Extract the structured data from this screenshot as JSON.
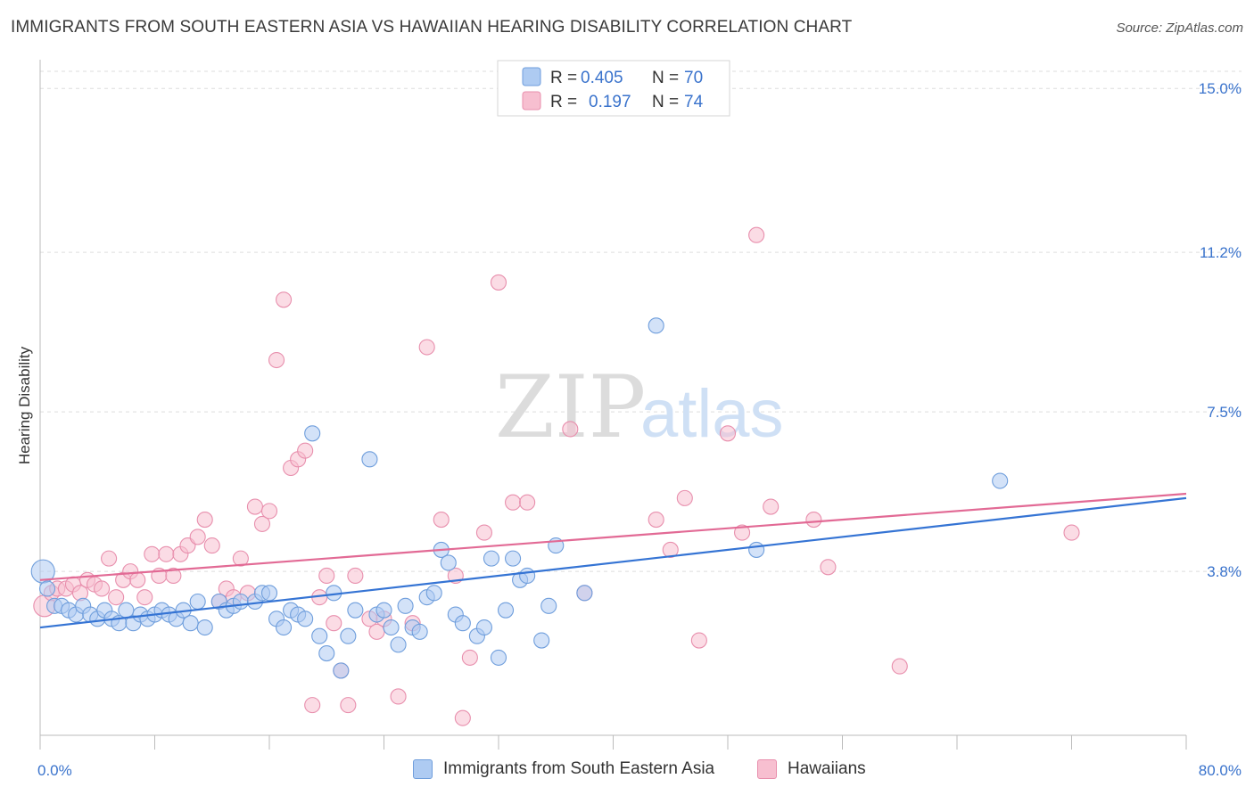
{
  "header": {
    "title": "IMMIGRANTS FROM SOUTH EASTERN ASIA VS HAWAIIAN HEARING DISABILITY CORRELATION CHART",
    "source": "Source: ZipAtlas.com"
  },
  "watermark": {
    "zip": "ZIP",
    "atlas": "atlas"
  },
  "colors": {
    "blue_fill": "#aecbf2",
    "blue_stroke": "#6f9edc",
    "blue_line": "#3574d4",
    "pink_fill": "#f7bfd0",
    "pink_stroke": "#e88fad",
    "pink_line": "#e26a95",
    "tick_label": "#3a73cc",
    "grid": "#dddddd"
  },
  "legend_top": {
    "rows": [
      {
        "r_label": "R =",
        "r_value": "0.405",
        "n_label": "N =",
        "n_value": "70"
      },
      {
        "r_label": "R =",
        "r_value": "0.197",
        "n_label": "N =",
        "n_value": "74"
      }
    ]
  },
  "legend_bottom": {
    "series1": "Immigrants from South Eastern Asia",
    "series2": "Hawaiians"
  },
  "chart_data": {
    "type": "scatter",
    "title": "IMMIGRANTS FROM SOUTH EASTERN ASIA VS HAWAIIAN HEARING DISABILITY CORRELATION CHART",
    "xlabel": "",
    "ylabel": "Hearing Disability",
    "xlim": [
      0,
      80
    ],
    "ylim": [
      0,
      15.5
    ],
    "x_tick_labels": [
      "0.0%",
      "80.0%"
    ],
    "y_ticks": [
      3.8,
      7.5,
      11.2,
      15.0
    ],
    "y_tick_labels": [
      "3.8%",
      "7.5%",
      "11.2%",
      "15.0%"
    ],
    "grid": "horizontal dashed",
    "legend": "top-center",
    "series": [
      {
        "name": "Immigrants from South Eastern Asia",
        "color": "#6f9edc",
        "R": 0.405,
        "N": 70,
        "trend": {
          "x": [
            0,
            80
          ],
          "y": [
            2.5,
            5.5
          ]
        },
        "points": [
          [
            0.2,
            3.8
          ],
          [
            0.5,
            3.4
          ],
          [
            1.0,
            3.0
          ],
          [
            1.5,
            3.0
          ],
          [
            2.0,
            2.9
          ],
          [
            2.5,
            2.8
          ],
          [
            3.0,
            3.0
          ],
          [
            3.5,
            2.8
          ],
          [
            4.0,
            2.7
          ],
          [
            4.5,
            2.9
          ],
          [
            5.0,
            2.7
          ],
          [
            5.5,
            2.6
          ],
          [
            6.0,
            2.9
          ],
          [
            6.5,
            2.6
          ],
          [
            7.0,
            2.8
          ],
          [
            7.5,
            2.7
          ],
          [
            8.0,
            2.8
          ],
          [
            8.5,
            2.9
          ],
          [
            9.0,
            2.8
          ],
          [
            9.5,
            2.7
          ],
          [
            10.0,
            2.9
          ],
          [
            10.5,
            2.6
          ],
          [
            11.0,
            3.1
          ],
          [
            11.5,
            2.5
          ],
          [
            12.5,
            3.1
          ],
          [
            13.0,
            2.9
          ],
          [
            13.5,
            3.0
          ],
          [
            14.0,
            3.1
          ],
          [
            15.0,
            3.1
          ],
          [
            15.5,
            3.3
          ],
          [
            16.0,
            3.3
          ],
          [
            16.5,
            2.7
          ],
          [
            17.0,
            2.5
          ],
          [
            17.5,
            2.9
          ],
          [
            18.0,
            2.8
          ],
          [
            18.5,
            2.7
          ],
          [
            19.0,
            7.0
          ],
          [
            19.5,
            2.3
          ],
          [
            20.0,
            1.9
          ],
          [
            20.5,
            3.3
          ],
          [
            21.0,
            1.5
          ],
          [
            21.5,
            2.3
          ],
          [
            22.0,
            2.9
          ],
          [
            23.0,
            6.4
          ],
          [
            23.5,
            2.8
          ],
          [
            24.0,
            2.9
          ],
          [
            24.5,
            2.5
          ],
          [
            25.0,
            2.1
          ],
          [
            25.5,
            3.0
          ],
          [
            26.0,
            2.5
          ],
          [
            26.5,
            2.4
          ],
          [
            27.0,
            3.2
          ],
          [
            27.5,
            3.3
          ],
          [
            28.0,
            4.3
          ],
          [
            28.5,
            4.0
          ],
          [
            29.0,
            2.8
          ],
          [
            29.5,
            2.6
          ],
          [
            30.5,
            2.3
          ],
          [
            31.0,
            2.5
          ],
          [
            31.5,
            4.1
          ],
          [
            32.0,
            1.8
          ],
          [
            32.5,
            2.9
          ],
          [
            33.0,
            4.1
          ],
          [
            33.5,
            3.6
          ],
          [
            34.0,
            3.7
          ],
          [
            35.0,
            2.2
          ],
          [
            35.5,
            3.0
          ],
          [
            36.0,
            4.4
          ],
          [
            38.0,
            3.3
          ],
          [
            43.0,
            9.5
          ],
          [
            50.0,
            4.3
          ],
          [
            67.0,
            5.9
          ]
        ]
      },
      {
        "name": "Hawaiians",
        "color": "#e88fad",
        "R": 0.197,
        "N": 74,
        "trend": {
          "x": [
            0,
            80
          ],
          "y": [
            3.6,
            5.6
          ]
        },
        "points": [
          [
            0.3,
            3.0
          ],
          [
            0.8,
            3.3
          ],
          [
            1.2,
            3.4
          ],
          [
            1.8,
            3.4
          ],
          [
            2.3,
            3.5
          ],
          [
            2.8,
            3.3
          ],
          [
            3.3,
            3.6
          ],
          [
            3.8,
            3.5
          ],
          [
            4.3,
            3.4
          ],
          [
            4.8,
            4.1
          ],
          [
            5.3,
            3.2
          ],
          [
            5.8,
            3.6
          ],
          [
            6.3,
            3.8
          ],
          [
            6.8,
            3.6
          ],
          [
            7.3,
            3.2
          ],
          [
            7.8,
            4.2
          ],
          [
            8.3,
            3.7
          ],
          [
            8.8,
            4.2
          ],
          [
            9.3,
            3.7
          ],
          [
            9.8,
            4.2
          ],
          [
            10.3,
            4.4
          ],
          [
            11.0,
            4.6
          ],
          [
            11.5,
            5.0
          ],
          [
            12.0,
            4.4
          ],
          [
            12.5,
            3.1
          ],
          [
            13.0,
            3.4
          ],
          [
            13.5,
            3.2
          ],
          [
            14.0,
            4.1
          ],
          [
            14.5,
            3.3
          ],
          [
            15.0,
            5.3
          ],
          [
            15.5,
            4.9
          ],
          [
            16.0,
            5.2
          ],
          [
            16.5,
            8.7
          ],
          [
            17.0,
            10.1
          ],
          [
            17.5,
            6.2
          ],
          [
            18.0,
            6.4
          ],
          [
            18.5,
            6.6
          ],
          [
            19.0,
            0.7
          ],
          [
            19.5,
            3.2
          ],
          [
            20.0,
            3.7
          ],
          [
            20.5,
            2.6
          ],
          [
            21.0,
            1.5
          ],
          [
            21.5,
            0.7
          ],
          [
            22.0,
            3.7
          ],
          [
            23.0,
            2.7
          ],
          [
            23.5,
            2.4
          ],
          [
            24.0,
            2.7
          ],
          [
            25.0,
            0.9
          ],
          [
            26.0,
            2.6
          ],
          [
            27.0,
            9.0
          ],
          [
            28.0,
            5.0
          ],
          [
            29.0,
            3.7
          ],
          [
            29.5,
            0.4
          ],
          [
            30.0,
            1.8
          ],
          [
            31.0,
            4.7
          ],
          [
            32.0,
            10.5
          ],
          [
            33.0,
            5.4
          ],
          [
            34.0,
            5.4
          ],
          [
            37.0,
            7.1
          ],
          [
            38.0,
            3.3
          ],
          [
            43.0,
            5.0
          ],
          [
            44.0,
            4.3
          ],
          [
            45.0,
            5.5
          ],
          [
            46.0,
            2.2
          ],
          [
            48.0,
            7.0
          ],
          [
            49.0,
            4.7
          ],
          [
            50.0,
            11.6
          ],
          [
            51.0,
            5.3
          ],
          [
            54.0,
            5.0
          ],
          [
            55.0,
            3.9
          ],
          [
            60.0,
            1.6
          ],
          [
            72.0,
            4.7
          ]
        ]
      }
    ]
  }
}
